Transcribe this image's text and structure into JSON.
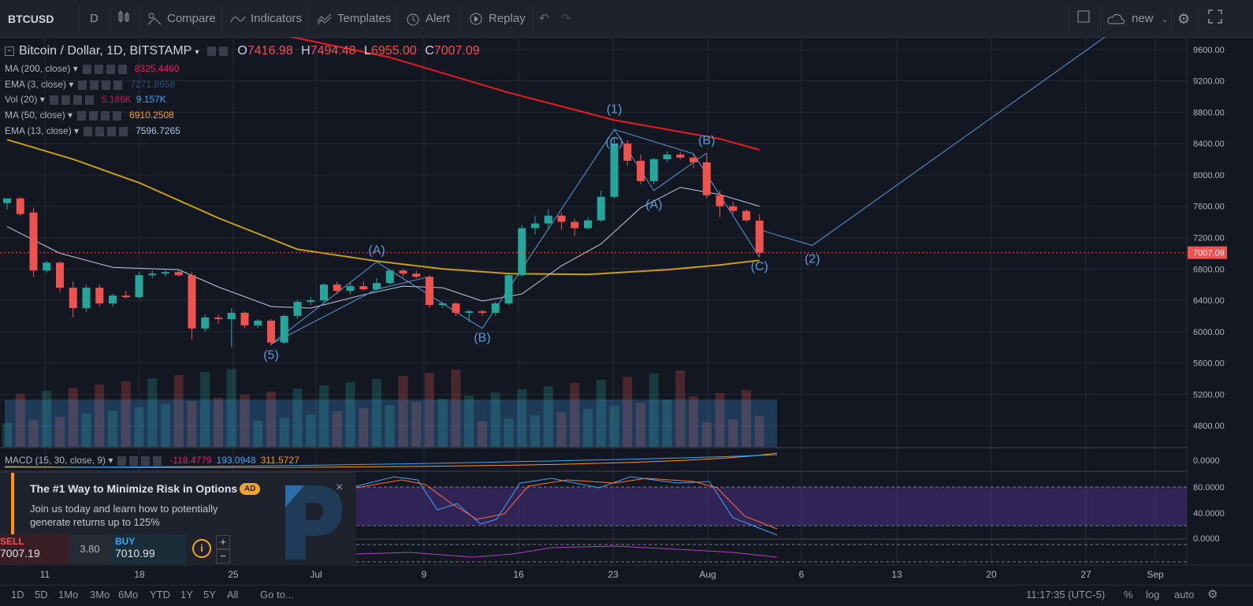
{
  "toolbar": {
    "symbol": "BTCUSD",
    "interval": "D",
    "compare": "Compare",
    "indicators": "Indicators",
    "templates": "Templates",
    "alert": "Alert",
    "replay": "Replay",
    "layout_name": "new"
  },
  "legend": {
    "title": "Bitcoin / Dollar, 1D, BITSTAMP",
    "o_label": "O",
    "o": "7416.98",
    "h_label": "H",
    "h": "7494.48",
    "l_label": "L",
    "l": "6955.00",
    "c_label": "C",
    "c": "7007.09",
    "indicators": [
      {
        "name": "MA (200, close)",
        "values": [
          "8325.4460"
        ],
        "colors": [
          "#e91e63"
        ]
      },
      {
        "name": "EMA (3, close)",
        "values": [
          "7271.8658"
        ],
        "colors": [
          "#2a4f7a"
        ]
      },
      {
        "name": "Vol (20)",
        "values": [
          "5.186K",
          "9.157K"
        ],
        "colors": [
          "#c2185b",
          "#42a5f5"
        ]
      },
      {
        "name": "MA (50, close)",
        "values": [
          "6910.2508"
        ],
        "colors": [
          "#f5a623"
        ]
      },
      {
        "name": "EMA (13, close)",
        "values": [
          "7596.7265"
        ],
        "colors": [
          "#b0c4de"
        ]
      }
    ]
  },
  "macd_legend": {
    "name": "MACD (15, 30, close, 9)",
    "values": [
      "-118.4779",
      "193.0948",
      "311.5727"
    ],
    "colors": [
      "#e91e63",
      "#42a5f5",
      "#ff9800"
    ]
  },
  "price_axis": {
    "labels": [
      "9600.00",
      "9200.00",
      "8800.00",
      "8400.00",
      "8000.00",
      "7600.00",
      "7200.00",
      "6800.00",
      "6400.00",
      "6000.00",
      "5600.00",
      "5200.00",
      "4800.00"
    ],
    "current": "7007.09",
    "macd_label": "0.0000",
    "stoch_labels": [
      "80.0000",
      "40.0000",
      "0.0000"
    ]
  },
  "time_axis": [
    "11",
    "18",
    "25",
    "Jul",
    "9",
    "16",
    "23",
    "Aug",
    "6",
    "13",
    "20",
    "27",
    "Sep"
  ],
  "wave_labels": [
    "(5)",
    "(A)",
    "(B)",
    "(1)",
    "(C)",
    "(A)",
    "(B)",
    "(C)",
    "(2)"
  ],
  "ad": {
    "title": "The #1 Way to Minimize Risk in Options",
    "badge": "AD",
    "body_line1": "Join us today and learn how to potentially",
    "body_line2": "generate returns up to 125%",
    "sell_label": "SELL",
    "sell_price": "7007.19",
    "spread": "3.80",
    "buy_label": "BUY",
    "buy_price": "7010.99",
    "close": "×",
    "plus": "+",
    "minus": "−",
    "info": "i"
  },
  "bottom": {
    "ranges": [
      "1D",
      "5D",
      "1Mo",
      "3Mo",
      "6Mo",
      "YTD",
      "1Y",
      "5Y",
      "All"
    ],
    "goto": "Go to...",
    "time": "11:17:35 (UTC-5)",
    "pct": "%",
    "log": "log",
    "auto": "auto"
  },
  "colors": {
    "up": "#26a69a",
    "down": "#ef5350",
    "ma200": "#e91e1e",
    "ma50": "#c8a017",
    "ema13": "#c5cbe0",
    "wave": "#5b9bd5"
  },
  "chart_data": {
    "type": "candlestick",
    "candles": [
      {
        "d": "Jun 4",
        "o": 7640,
        "h": 7700,
        "l": 7560,
        "c": 7700
      },
      {
        "d": "Jun 5",
        "o": 7700,
        "h": 7720,
        "l": 7480,
        "c": 7500
      },
      {
        "d": "Jun 6",
        "o": 7520,
        "h": 7580,
        "l": 6700,
        "c": 6780
      },
      {
        "d": "Jun 7",
        "o": 6780,
        "h": 6900,
        "l": 6750,
        "c": 6880
      },
      {
        "d": "Jun 8",
        "o": 6880,
        "h": 6900,
        "l": 6500,
        "c": 6560
      },
      {
        "d": "Jun 9",
        "o": 6560,
        "h": 6640,
        "l": 6180,
        "c": 6300
      },
      {
        "d": "Jun 10",
        "o": 6300,
        "h": 6600,
        "l": 6250,
        "c": 6560
      },
      {
        "d": "Jun 11",
        "o": 6560,
        "h": 6600,
        "l": 6320,
        "c": 6360
      },
      {
        "d": "Jun 12",
        "o": 6360,
        "h": 6480,
        "l": 6320,
        "c": 6460
      },
      {
        "d": "Jun 13",
        "o": 6460,
        "h": 6520,
        "l": 6420,
        "c": 6440
      },
      {
        "d": "Jun 14",
        "o": 6440,
        "h": 6760,
        "l": 6420,
        "c": 6720
      },
      {
        "d": "Jun 15",
        "o": 6720,
        "h": 6780,
        "l": 6680,
        "c": 6740
      },
      {
        "d": "Jun 16",
        "o": 6740,
        "h": 6800,
        "l": 6700,
        "c": 6760
      },
      {
        "d": "Jun 17",
        "o": 6760,
        "h": 6780,
        "l": 6700,
        "c": 6720
      },
      {
        "d": "Jun 18",
        "o": 6720,
        "h": 6760,
        "l": 5900,
        "c": 6040
      },
      {
        "d": "Jun 19",
        "o": 6040,
        "h": 6220,
        "l": 6000,
        "c": 6180
      },
      {
        "d": "Jun 20",
        "o": 6180,
        "h": 6220,
        "l": 6100,
        "c": 6160
      },
      {
        "d": "Jun 21",
        "o": 6160,
        "h": 6300,
        "l": 5800,
        "c": 6240
      },
      {
        "d": "Jun 22",
        "o": 6240,
        "h": 6260,
        "l": 6040,
        "c": 6080
      },
      {
        "d": "Jun 23",
        "o": 6080,
        "h": 6160,
        "l": 6040,
        "c": 6140
      },
      {
        "d": "Jun 24",
        "o": 6140,
        "h": 6160,
        "l": 5820,
        "c": 5860
      },
      {
        "d": "Jun 25",
        "o": 5860,
        "h": 6220,
        "l": 5840,
        "c": 6200
      },
      {
        "d": "Jun 26",
        "o": 6200,
        "h": 6400,
        "l": 6160,
        "c": 6380
      },
      {
        "d": "Jun 27",
        "o": 6380,
        "h": 6440,
        "l": 6340,
        "c": 6400
      },
      {
        "d": "Jun 28",
        "o": 6400,
        "h": 6620,
        "l": 6360,
        "c": 6600
      },
      {
        "d": "Jun 29",
        "o": 6600,
        "h": 6640,
        "l": 6480,
        "c": 6520
      },
      {
        "d": "Jun 30",
        "o": 6520,
        "h": 6620,
        "l": 6480,
        "c": 6580
      },
      {
        "d": "Jul 1",
        "o": 6580,
        "h": 6640,
        "l": 6520,
        "c": 6540
      },
      {
        "d": "Jul 2",
        "o": 6540,
        "h": 6680,
        "l": 6520,
        "c": 6620
      },
      {
        "d": "Jul 3",
        "o": 6620,
        "h": 6800,
        "l": 6600,
        "c": 6780
      },
      {
        "d": "Jul 4",
        "o": 6780,
        "h": 6800,
        "l": 6700,
        "c": 6740
      },
      {
        "d": "Jul 5",
        "o": 6740,
        "h": 6780,
        "l": 6680,
        "c": 6700
      },
      {
        "d": "Jul 6",
        "o": 6700,
        "h": 6720,
        "l": 6300,
        "c": 6340
      },
      {
        "d": "Jul 7",
        "o": 6340,
        "h": 6380,
        "l": 6300,
        "c": 6360
      },
      {
        "d": "Jul 8",
        "o": 6360,
        "h": 6380,
        "l": 6200,
        "c": 6240
      },
      {
        "d": "Jul 9",
        "o": 6240,
        "h": 6280,
        "l": 6120,
        "c": 6260
      },
      {
        "d": "Jul 10",
        "o": 6260,
        "h": 6280,
        "l": 6200,
        "c": 6240
      },
      {
        "d": "Jul 11",
        "o": 6240,
        "h": 6380,
        "l": 6200,
        "c": 6360
      },
      {
        "d": "Jul 12",
        "o": 6360,
        "h": 6760,
        "l": 6340,
        "c": 6720
      },
      {
        "d": "Jul 13",
        "o": 6720,
        "h": 7360,
        "l": 6700,
        "c": 7320
      },
      {
        "d": "Jul 14",
        "o": 7320,
        "h": 7480,
        "l": 7240,
        "c": 7380
      },
      {
        "d": "Jul 15",
        "o": 7380,
        "h": 7560,
        "l": 7300,
        "c": 7480
      },
      {
        "d": "Jul 16",
        "o": 7480,
        "h": 7520,
        "l": 7300,
        "c": 7400
      },
      {
        "d": "Jul 17",
        "o": 7400,
        "h": 7440,
        "l": 7220,
        "c": 7320
      },
      {
        "d": "Jul 18",
        "o": 7320,
        "h": 7460,
        "l": 7300,
        "c": 7420
      },
      {
        "d": "Jul 19",
        "o": 7420,
        "h": 7800,
        "l": 7400,
        "c": 7720
      },
      {
        "d": "Jul 20",
        "o": 7720,
        "h": 8480,
        "l": 7700,
        "c": 8400
      },
      {
        "d": "Jul 21",
        "o": 8400,
        "h": 8440,
        "l": 8120,
        "c": 8180
      },
      {
        "d": "Jul 22",
        "o": 8180,
        "h": 8260,
        "l": 7880,
        "c": 7920
      },
      {
        "d": "Jul 23",
        "o": 7920,
        "h": 8220,
        "l": 7880,
        "c": 8200
      },
      {
        "d": "Jul 24",
        "o": 8200,
        "h": 8300,
        "l": 8160,
        "c": 8260
      },
      {
        "d": "Jul 25",
        "o": 8260,
        "h": 8300,
        "l": 8200,
        "c": 8220
      },
      {
        "d": "Jul 26",
        "o": 8220,
        "h": 8260,
        "l": 8080,
        "c": 8160
      },
      {
        "d": "Jul 27",
        "o": 8160,
        "h": 8280,
        "l": 7700,
        "c": 7740
      },
      {
        "d": "Jul 28",
        "o": 7740,
        "h": 7800,
        "l": 7460,
        "c": 7600
      },
      {
        "d": "Jul 29",
        "o": 7600,
        "h": 7660,
        "l": 7500,
        "c": 7540
      },
      {
        "d": "Jul 30",
        "o": 7540,
        "h": 7560,
        "l": 7400,
        "c": 7420
      },
      {
        "d": "Jul 31",
        "o": 7416.98,
        "h": 7494.48,
        "l": 6955,
        "c": 7007.09
      }
    ],
    "ylim": [
      4650,
      9800
    ],
    "series": [
      {
        "name": "MA (200, close)",
        "points": [
          [
            21,
            9780
          ],
          [
            29,
            9500
          ],
          [
            38,
            9050
          ],
          [
            46,
            8700
          ],
          [
            54,
            8460
          ],
          [
            57,
            8320
          ]
        ]
      },
      {
        "name": "MA (50, close)",
        "points": [
          [
            0,
            8450
          ],
          [
            5,
            8200
          ],
          [
            10,
            7900
          ],
          [
            16,
            7450
          ],
          [
            22,
            7050
          ],
          [
            28,
            6900
          ],
          [
            33,
            6800
          ],
          [
            38,
            6740
          ],
          [
            44,
            6730
          ],
          [
            50,
            6790
          ],
          [
            54,
            6850
          ],
          [
            57,
            6910
          ]
        ]
      },
      {
        "name": "EMA (13, close)",
        "points": [
          [
            0,
            7340
          ],
          [
            4,
            7000
          ],
          [
            8,
            6820
          ],
          [
            13,
            6790
          ],
          [
            16,
            6570
          ],
          [
            20,
            6320
          ],
          [
            23,
            6300
          ],
          [
            27,
            6470
          ],
          [
            30,
            6580
          ],
          [
            33,
            6560
          ],
          [
            36,
            6390
          ],
          [
            39,
            6480
          ],
          [
            42,
            6840
          ],
          [
            45,
            7120
          ],
          [
            48,
            7580
          ],
          [
            51,
            7840
          ],
          [
            54,
            7750
          ],
          [
            57,
            7600
          ]
        ]
      }
    ],
    "waves": [
      {
        "name": "wave-a",
        "points": [
          [
            20,
            5840
          ],
          [
            28,
            6890
          ],
          [
            36,
            6040
          ],
          [
            46,
            8580
          ],
          [
            52,
            8270
          ],
          [
            57,
            6950
          ]
        ]
      },
      {
        "name": "wave-b",
        "points": [
          [
            46,
            8580
          ],
          [
            49,
            7800
          ],
          [
            53,
            8280
          ]
        ]
      },
      {
        "name": "wave-c",
        "points": [
          [
            20,
            5840
          ],
          [
            28,
            6540
          ],
          [
            32,
            6700
          ]
        ]
      },
      {
        "name": "wave-projection",
        "points": [
          [
            57,
            7300
          ],
          [
            61,
            7100
          ],
          [
            85,
            9980
          ]
        ]
      }
    ]
  }
}
